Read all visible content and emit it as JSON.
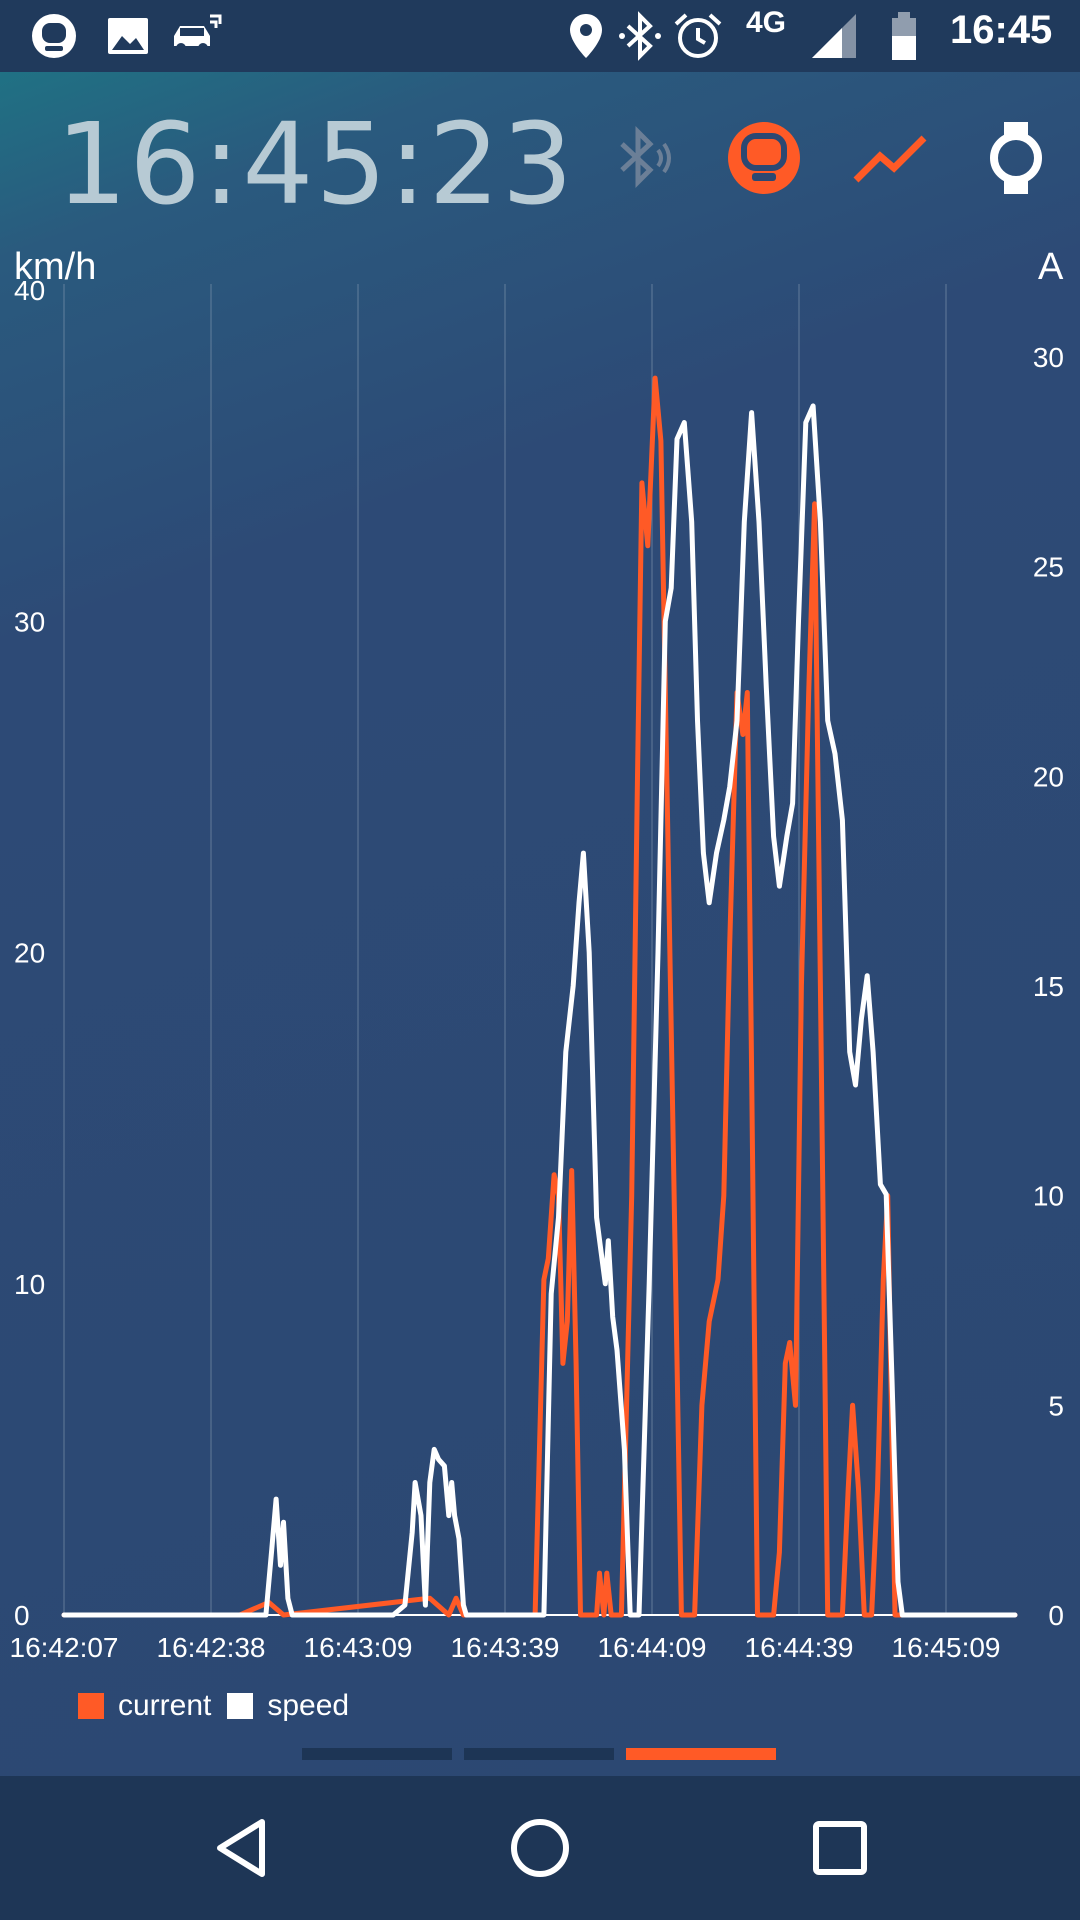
{
  "status_bar": {
    "time": "16:45",
    "network": "4G",
    "left_icons": [
      "wheel-app-icon",
      "image-icon",
      "car-notification-icon"
    ],
    "right_icons": [
      "location-pin-icon",
      "bluetooth-icon",
      "alarm-icon",
      "signal-icon",
      "battery-icon"
    ]
  },
  "header": {
    "clock": "16:45:23",
    "icons": [
      "bluetooth-connecting-icon",
      "wheel-icon",
      "chart-line-icon",
      "watch-icon"
    ]
  },
  "colors": {
    "current": "#ff5a26",
    "speed": "#ffffff",
    "clock": "#b7cad4",
    "background": "#2c4872"
  },
  "chart_data": {
    "type": "line",
    "left_axis": {
      "label": "km/h",
      "ticks": [
        "0",
        "10",
        "20",
        "30",
        "40"
      ],
      "range": [
        0,
        40
      ]
    },
    "right_axis": {
      "label": "A",
      "ticks": [
        "0",
        "5",
        "10",
        "15",
        "20",
        "25",
        "30"
      ],
      "range": [
        0,
        31.6
      ]
    },
    "x_ticks": [
      "16:42:07",
      "16:42:38",
      "16:43:09",
      "16:43:39",
      "16:44:09",
      "16:44:39",
      "16:45:09"
    ],
    "grid": "vertical",
    "legend": "bottom-left",
    "series": [
      {
        "name": "speed",
        "axis": "left",
        "points": [
          [
            0,
            0
          ],
          [
            120,
            0
          ],
          [
            138,
            0
          ],
          [
            142,
            2
          ],
          [
            145,
            3.5
          ],
          [
            148,
            1.5
          ],
          [
            150,
            2.8
          ],
          [
            153,
            0.5
          ],
          [
            156,
            0
          ],
          [
            225,
            0
          ],
          [
            233,
            0.3
          ],
          [
            238,
            2.5
          ],
          [
            240,
            4
          ],
          [
            244,
            3
          ],
          [
            247,
            0.3
          ],
          [
            250,
            4
          ],
          [
            253,
            5
          ],
          [
            256,
            4.7
          ],
          [
            260,
            4.5
          ],
          [
            263,
            3
          ],
          [
            265,
            4
          ],
          [
            267,
            3
          ],
          [
            270,
            2.3
          ],
          [
            273,
            0.3
          ],
          [
            275,
            0
          ],
          [
            328,
            0
          ],
          [
            333,
            9.7
          ],
          [
            338,
            12
          ],
          [
            343,
            17
          ],
          [
            348,
            19
          ],
          [
            352,
            21.5
          ],
          [
            355,
            23
          ],
          [
            359,
            20
          ],
          [
            364,
            12
          ],
          [
            367,
            11
          ],
          [
            370,
            10
          ],
          [
            372,
            11.3
          ],
          [
            375,
            9
          ],
          [
            378,
            8
          ],
          [
            383,
            5
          ],
          [
            387,
            0
          ],
          [
            393,
            0
          ],
          [
            400,
            10
          ],
          [
            406,
            20
          ],
          [
            411,
            30
          ],
          [
            415,
            31
          ],
          [
            419,
            35.5
          ],
          [
            424,
            36
          ],
          [
            429,
            33
          ],
          [
            433,
            27
          ],
          [
            437,
            23
          ],
          [
            441,
            21.5
          ],
          [
            446,
            23
          ],
          [
            451,
            24
          ],
          [
            455,
            25
          ],
          [
            460,
            27
          ],
          [
            465,
            33
          ],
          [
            470,
            36.3
          ],
          [
            475,
            33
          ],
          [
            480,
            28
          ],
          [
            485,
            23.5
          ],
          [
            489,
            22
          ],
          [
            494,
            23.5
          ],
          [
            498,
            24.5
          ],
          [
            502,
            30
          ],
          [
            507,
            36
          ],
          [
            512,
            36.5
          ],
          [
            517,
            33
          ],
          [
            522,
            27
          ],
          [
            527,
            26
          ],
          [
            532,
            24
          ],
          [
            537,
            17
          ],
          [
            541,
            16
          ],
          [
            545,
            18
          ],
          [
            549,
            19.3
          ],
          [
            553,
            17
          ],
          [
            558,
            13
          ],
          [
            562,
            12.7
          ],
          [
            566,
            7
          ],
          [
            570,
            1
          ],
          [
            573,
            0
          ],
          [
            650,
            0
          ]
        ]
      },
      {
        "name": "current",
        "axis": "right",
        "points": [
          [
            0,
            0
          ],
          [
            120,
            0
          ],
          [
            140,
            0.3
          ],
          [
            150,
            0
          ],
          [
            250,
            0.4
          ],
          [
            263,
            0
          ],
          [
            268,
            0.4
          ],
          [
            273,
            0
          ],
          [
            322,
            0
          ],
          [
            328,
            8
          ],
          [
            331,
            8.5
          ],
          [
            335,
            10.5
          ],
          [
            338,
            10
          ],
          [
            341,
            6
          ],
          [
            344,
            7
          ],
          [
            347,
            10.6
          ],
          [
            350,
            6
          ],
          [
            353,
            0
          ],
          [
            364,
            0
          ],
          [
            366,
            1
          ],
          [
            369,
            0
          ],
          [
            371,
            1
          ],
          [
            374,
            0
          ],
          [
            381,
            0
          ],
          [
            388,
            10
          ],
          [
            392,
            20
          ],
          [
            395,
            27
          ],
          [
            399,
            25.5
          ],
          [
            404,
            29.5
          ],
          [
            408,
            28
          ],
          [
            412,
            20
          ],
          [
            418,
            8
          ],
          [
            422,
            0
          ],
          [
            431,
            0
          ],
          [
            436,
            5
          ],
          [
            441,
            7
          ],
          [
            447,
            8
          ],
          [
            451,
            10
          ],
          [
            455,
            16
          ],
          [
            460,
            22
          ],
          [
            464,
            21
          ],
          [
            467,
            22
          ],
          [
            470,
            13
          ],
          [
            474,
            0
          ],
          [
            485,
            0
          ],
          [
            489,
            1.5
          ],
          [
            493,
            6
          ],
          [
            496,
            6.5
          ],
          [
            500,
            5
          ],
          [
            504,
            15
          ],
          [
            509,
            22
          ],
          [
            513,
            26.5
          ],
          [
            517,
            15
          ],
          [
            522,
            0
          ],
          [
            532,
            0
          ],
          [
            536,
            3
          ],
          [
            539,
            5
          ],
          [
            543,
            3
          ],
          [
            547,
            0
          ],
          [
            552,
            0
          ],
          [
            556,
            3
          ],
          [
            560,
            8
          ],
          [
            563,
            10
          ],
          [
            568,
            0
          ],
          [
            650,
            0
          ]
        ]
      }
    ]
  },
  "legend": {
    "items": [
      {
        "name": "current"
      },
      {
        "name": "speed"
      }
    ]
  },
  "pager": {
    "count": 3,
    "active": 2
  },
  "nav": {
    "buttons": [
      "back-icon",
      "home-icon",
      "recents-icon"
    ]
  }
}
